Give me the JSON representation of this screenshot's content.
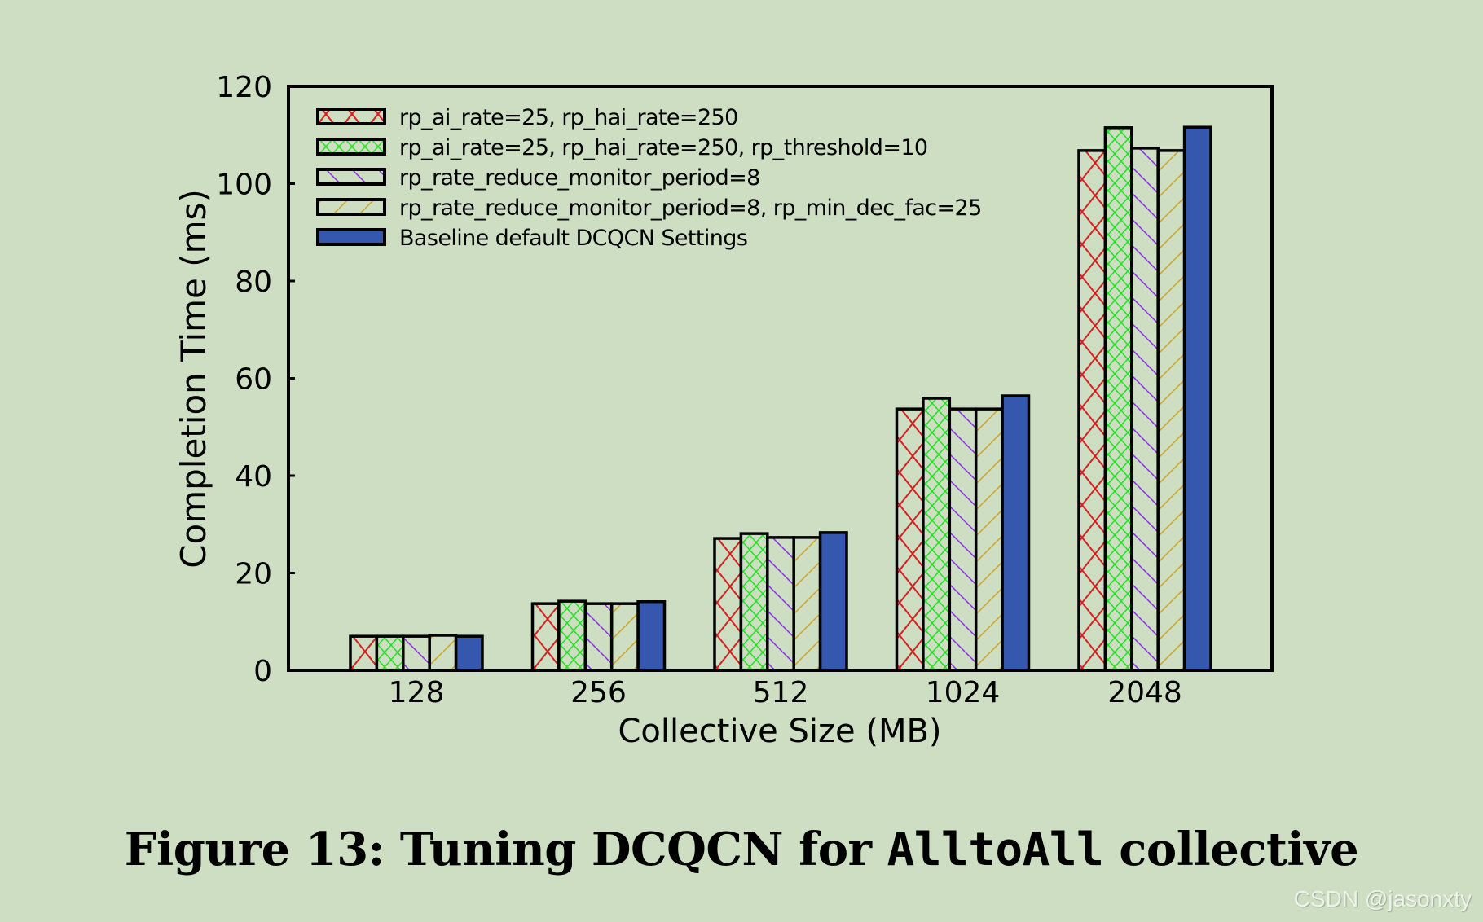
{
  "caption": {
    "prefix": "Figure 13: Tuning DCQCN for ",
    "code": "AlltoAll",
    "suffix": " collective"
  },
  "watermark": "CSDN @jasonxty",
  "colors": {
    "background": "#CDDEC2",
    "red": "#D42020",
    "green": "#22E022",
    "purple": "#8A2BE2",
    "tan": "#D4A017",
    "blue": "#3557AD"
  },
  "chart_data": {
    "type": "bar",
    "title": "Figure 13: Tuning DCQCN for AlltoAll collective",
    "xlabel": "Collective Size (MB)",
    "ylabel": "Completion Time (ms)",
    "ylim": [
      0,
      120
    ],
    "yticks": [
      0,
      20,
      40,
      60,
      80,
      100,
      120
    ],
    "categories": [
      "128",
      "256",
      "512",
      "1024",
      "2048"
    ],
    "grid": false,
    "legend_position": "upper left (inside)",
    "series": [
      {
        "name": "rp_ai_rate=25, rp_hai_rate=250",
        "pattern": "cross-red",
        "values": [
          7.0,
          13.7,
          27.1,
          53.7,
          106.8
        ]
      },
      {
        "name": "rp_ai_rate=25, rp_hai_rate=250, rp_threshold=10",
        "pattern": "crosshatch-green",
        "values": [
          7.0,
          14.2,
          28.1,
          55.9,
          111.5
        ]
      },
      {
        "name": "rp_rate_reduce_monitor_period=8",
        "pattern": "backslash-purple",
        "values": [
          7.0,
          13.7,
          27.3,
          53.7,
          107.3
        ]
      },
      {
        "name": "rp_rate_reduce_monitor_period=8, rp_min_dec_fac=25",
        "pattern": "slash-tan",
        "values": [
          7.2,
          13.7,
          27.3,
          53.7,
          106.8
        ]
      },
      {
        "name": "Baseline default DCQCN Settings",
        "pattern": "solid-blue",
        "values": [
          7.0,
          14.1,
          28.3,
          56.4,
          111.6
        ]
      }
    ]
  }
}
